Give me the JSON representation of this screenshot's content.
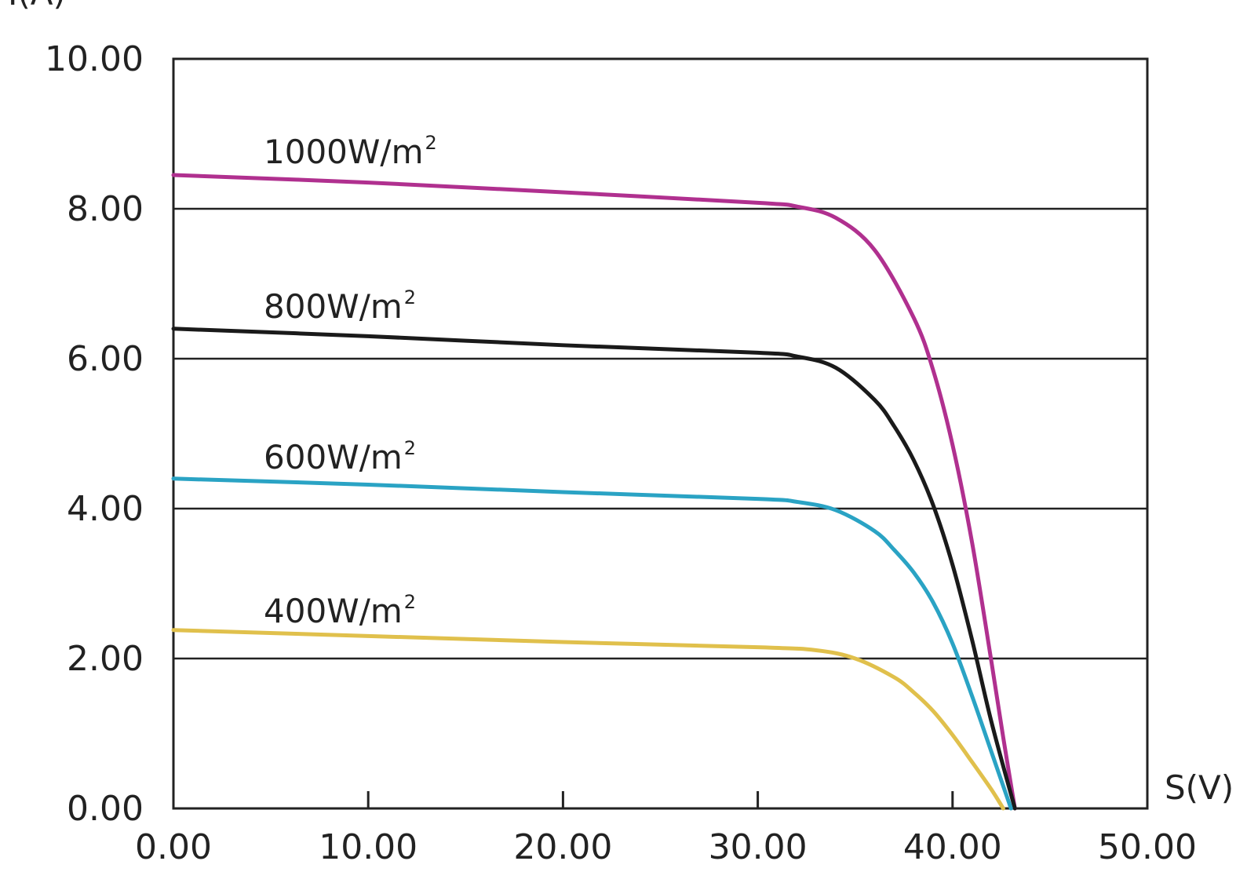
{
  "chart_data": {
    "type": "line",
    "title": "",
    "xlabel": "S(V)",
    "ylabel": "I(A)",
    "xlim": [
      0,
      50
    ],
    "ylim": [
      0,
      10
    ],
    "x_ticks": [
      "0.00",
      "10.00",
      "20.00",
      "30.00",
      "40.00",
      "50.00"
    ],
    "y_ticks": [
      "0.00",
      "2.00",
      "4.00",
      "6.00",
      "8.00",
      "10.00"
    ],
    "grid": "horizontal",
    "series": [
      {
        "name": "1000W/m²",
        "color": "#b0308f",
        "x": [
          0,
          10,
          20,
          30,
          32,
          34,
          36,
          38,
          39,
          40,
          41,
          42,
          42.6,
          43.2
        ],
        "y": [
          8.45,
          8.35,
          8.22,
          8.08,
          8.03,
          7.88,
          7.45,
          6.55,
          5.85,
          4.85,
          3.55,
          1.95,
          0.95,
          0
        ]
      },
      {
        "name": "800W/m²",
        "color": "#1a1a1a",
        "x": [
          0,
          10,
          20,
          30,
          32,
          34,
          36,
          37,
          38,
          39,
          40,
          41,
          42,
          43.2
        ],
        "y": [
          6.4,
          6.3,
          6.18,
          6.08,
          6.03,
          5.88,
          5.45,
          5.1,
          4.65,
          4.05,
          3.25,
          2.25,
          1.15,
          0
        ]
      },
      {
        "name": "600W/m²",
        "color": "#2aa3c4",
        "x": [
          0,
          10,
          20,
          30,
          32,
          34,
          36,
          37,
          38,
          39,
          40,
          41,
          42,
          43
        ],
        "y": [
          4.4,
          4.32,
          4.22,
          4.13,
          4.09,
          3.98,
          3.7,
          3.45,
          3.15,
          2.75,
          2.2,
          1.5,
          0.75,
          0
        ]
      },
      {
        "name": "400W/m²",
        "color": "#e0c04c",
        "x": [
          0,
          10,
          20,
          30,
          33,
          35,
          37,
          38,
          39,
          40,
          41,
          42,
          42.6
        ],
        "y": [
          2.38,
          2.3,
          2.22,
          2.15,
          2.11,
          2.0,
          1.75,
          1.55,
          1.3,
          0.98,
          0.62,
          0.25,
          0
        ]
      }
    ],
    "annotations": [
      {
        "text": "1000W/m",
        "sup": "2"
      },
      {
        "text": "800W/m",
        "sup": "2"
      },
      {
        "text": "600W/m",
        "sup": "2"
      },
      {
        "text": "400W/m",
        "sup": "2"
      }
    ]
  }
}
